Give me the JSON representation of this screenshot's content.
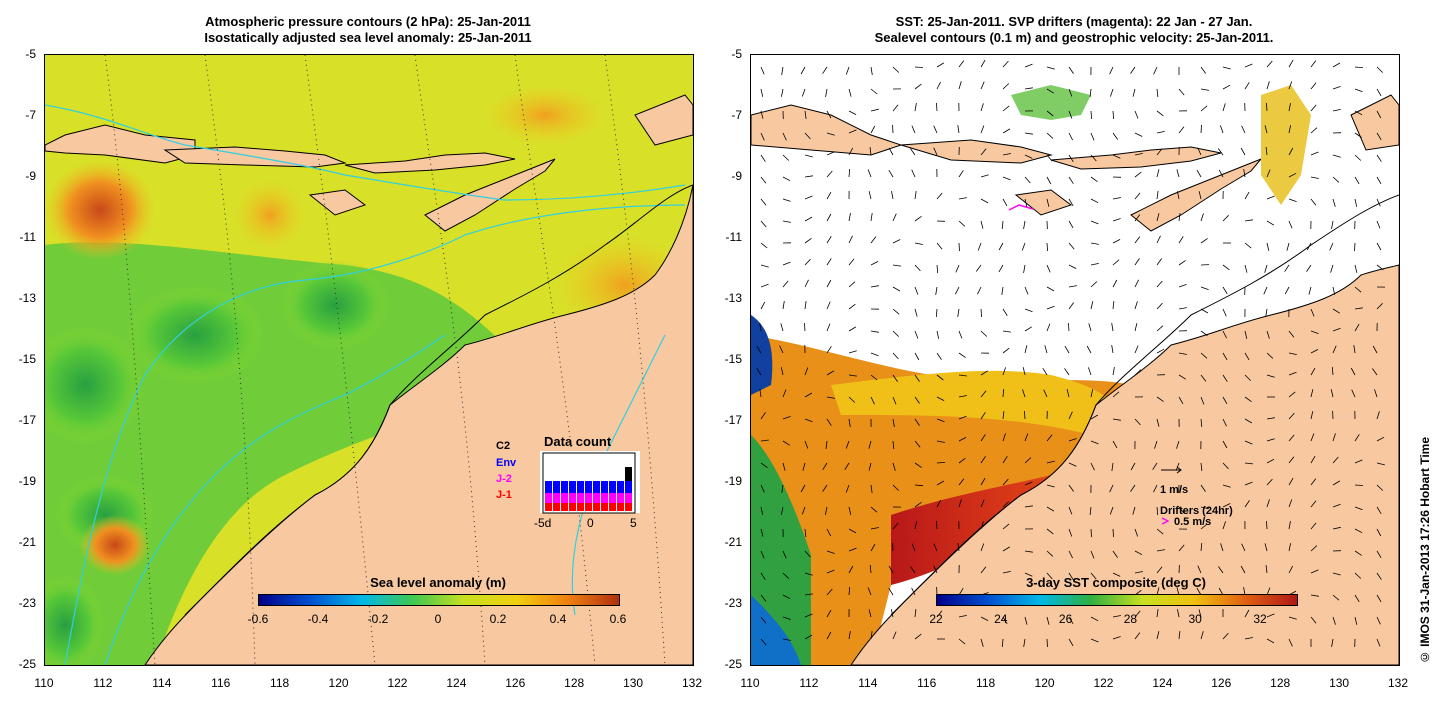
{
  "left_panel": {
    "title_line1": "Atmospheric pressure contours (2 hPa): 25-Jan-2011",
    "title_line2": "Isostatically adjusted sea level anomaly: 25-Jan-2011",
    "colorbar_title": "Sea level anomaly (m)",
    "colorbar_ticks": [
      "-0.6",
      "-0.4",
      "-0.2",
      "0",
      "0.2",
      "0.4",
      "0.6"
    ],
    "data_count": {
      "title": "Data count",
      "labels": [
        "C2",
        "Env",
        "J-2",
        "J-1"
      ],
      "label_colors": [
        "#000000",
        "#0000ff",
        "#ff00ff",
        "#ff0000"
      ],
      "x_ticks": [
        "-5d",
        "0",
        "5"
      ]
    }
  },
  "right_panel": {
    "title_line1": "SST: 25-Jan-2011. SVP drifters (magenta): 22 Jan - 27 Jan.",
    "title_line2": "Sealevel contours (0.1 m) and geostrophic velocity: 25-Jan-2011.",
    "colorbar_title": "3-day SST composite (deg C)",
    "colorbar_ticks": [
      "22",
      "24",
      "26",
      "28",
      "30",
      "32"
    ],
    "velocity_legend": "1 m/s",
    "drifters_legend_title": "Drifters (24hr)",
    "drifters_legend_value": "0.5 m/s"
  },
  "y_ticks": [
    "-5",
    "-7",
    "-9",
    "-11",
    "-13",
    "-15",
    "-17",
    "-19",
    "-21",
    "-23",
    "-25"
  ],
  "x_ticks": [
    "110",
    "112",
    "114",
    "116",
    "118",
    "120",
    "122",
    "124",
    "126",
    "128",
    "130",
    "132"
  ],
  "credit": "© IMOS 31-Jan-2013 17:26 Hobart Time",
  "colors": {
    "land": "#f8c8a0",
    "ssh_gradient": [
      "#00008b",
      "#0050d0",
      "#00b8e8",
      "#40c850",
      "#c8e020",
      "#f0d010",
      "#f08010",
      "#b03010"
    ],
    "sst_gradient": [
      "#00008b",
      "#0050d0",
      "#00b8e8",
      "#30b040",
      "#c8e020",
      "#f0c010",
      "#e06010",
      "#b01818"
    ]
  }
}
